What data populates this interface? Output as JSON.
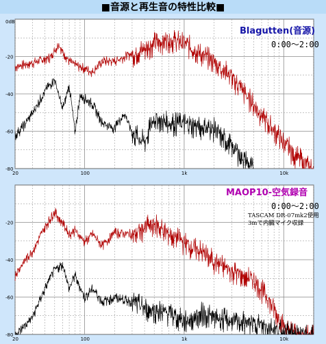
{
  "page_title": "■音源と再生音の特性比較■",
  "colors": {
    "source_trace": "#b00000",
    "playback_trace": "#000000",
    "grid": "#8a8a8a",
    "plot_bg": "#ffffff"
  },
  "chart_data": [
    {
      "type": "line",
      "title": "Blagutten(音源)",
      "title_color": "#1515a8",
      "time_range": "0:00～2:00",
      "note_lines": [],
      "x_scale": "log",
      "xlim": [
        20,
        20000
      ],
      "ylim": [
        -80,
        0
      ],
      "x_ticks": [
        {
          "v": 20,
          "label": "20"
        },
        {
          "v": 100,
          "label": "100"
        },
        {
          "v": 1000,
          "label": "1k"
        },
        {
          "v": 10000,
          "label": "10k"
        }
      ],
      "y_ticks": [
        {
          "v": 0,
          "label": "0dB"
        },
        {
          "v": -20,
          "label": "-20"
        },
        {
          "v": -40,
          "label": "-40"
        },
        {
          "v": -60,
          "label": "-60"
        },
        {
          "v": -80,
          "label": "-80"
        }
      ],
      "grid": true,
      "series": [
        {
          "color": "#b00000",
          "x": [
            20,
            30,
            45,
            55,
            60,
            70,
            80,
            100,
            120,
            150,
            200,
            300,
            400,
            500,
            700,
            1000,
            1500,
            2000,
            3000,
            5000,
            7000,
            10000,
            13000,
            16000,
            20000
          ],
          "y": [
            -25,
            -23,
            -20,
            -13,
            -17,
            -22,
            -24,
            -26,
            -28,
            -22,
            -22,
            -18,
            -15,
            -12,
            -10,
            -12,
            -18,
            -22,
            -30,
            -45,
            -55,
            -65,
            -72,
            -76,
            -80
          ]
        },
        {
          "color": "#000000",
          "x": [
            20,
            25,
            30,
            40,
            50,
            60,
            70,
            80,
            90,
            100,
            120,
            150,
            200,
            250,
            300,
            400,
            500,
            700,
            1000,
            1500,
            2000,
            2500,
            3000,
            4000,
            5000
          ],
          "y": [
            -62,
            -56,
            -50,
            -38,
            -32,
            -48,
            -35,
            -60,
            -40,
            -42,
            -45,
            -55,
            -58,
            -50,
            -60,
            -65,
            -52,
            -55,
            -55,
            -57,
            -58,
            -63,
            -67,
            -74,
            -80
          ]
        }
      ]
    },
    {
      "type": "line",
      "title": "MAOP10-空気録音",
      "title_color": "#b000b0",
      "time_range": "0:00～2:00",
      "note_lines": [
        "TASCAM DR-07mk2使用",
        "3mで内臓マイク収録"
      ],
      "x_scale": "log",
      "xlim": [
        20,
        20000
      ],
      "ylim": [
        -80,
        0
      ],
      "x_ticks": [
        {
          "v": 20,
          "label": "20"
        },
        {
          "v": 100,
          "label": "100"
        },
        {
          "v": 1000,
          "label": "1k"
        },
        {
          "v": 10000,
          "label": "10k"
        }
      ],
      "y_ticks": [
        {
          "v": -20,
          "label": "-20"
        },
        {
          "v": -40,
          "label": "-40"
        },
        {
          "v": -60,
          "label": "-60"
        },
        {
          "v": -80,
          "label": "-80"
        }
      ],
      "grid": true,
      "series": [
        {
          "color": "#b00000",
          "x": [
            20,
            25,
            30,
            40,
            50,
            60,
            70,
            80,
            100,
            120,
            150,
            200,
            300,
            400,
            500,
            700,
            1000,
            1500,
            2000,
            3000,
            5000,
            7000,
            10000,
            15000,
            20000
          ],
          "y": [
            -48,
            -40,
            -35,
            -22,
            -14,
            -20,
            -26,
            -24,
            -30,
            -26,
            -32,
            -25,
            -26,
            -22,
            -20,
            -25,
            -30,
            -35,
            -40,
            -45,
            -50,
            -60,
            -75,
            -80,
            -80
          ]
        },
        {
          "color": "#000000",
          "x": [
            20,
            25,
            30,
            40,
            50,
            60,
            70,
            80,
            100,
            120,
            150,
            200,
            300,
            400,
            500,
            700,
            1000,
            1500,
            2000,
            3000,
            5000,
            7000,
            10000,
            15000,
            20000
          ],
          "y": [
            -80,
            -75,
            -70,
            -55,
            -45,
            -42,
            -55,
            -48,
            -60,
            -55,
            -62,
            -60,
            -62,
            -65,
            -66,
            -68,
            -72,
            -68,
            -70,
            -72,
            -73,
            -75,
            -78,
            -80,
            -80
          ]
        }
      ]
    }
  ]
}
